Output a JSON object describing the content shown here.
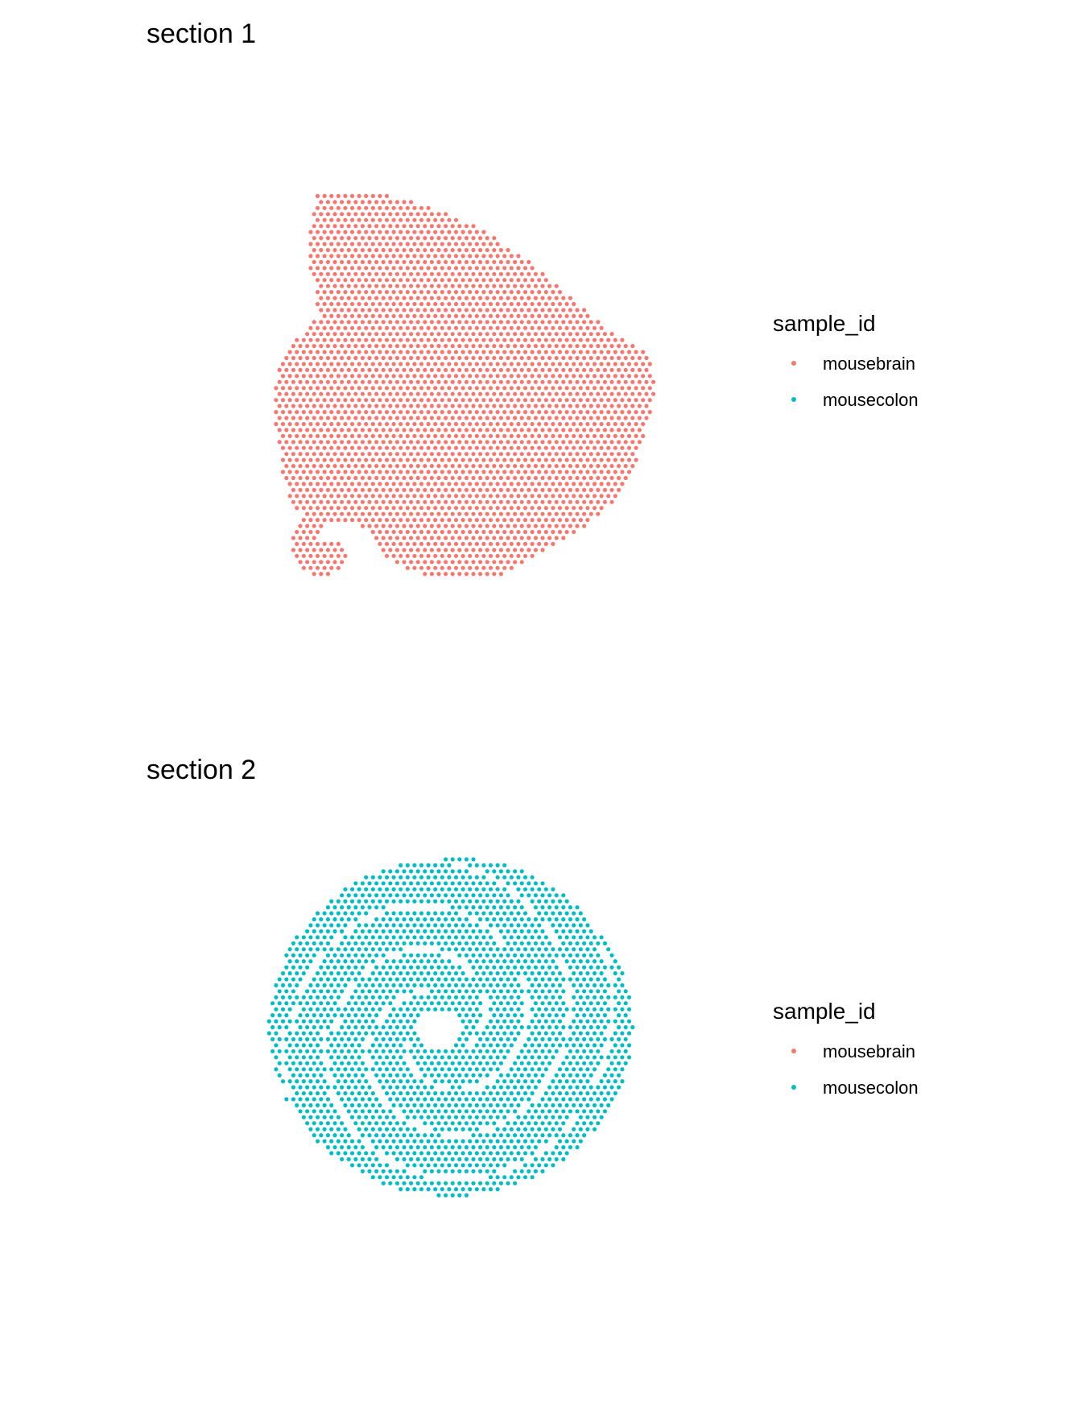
{
  "legend": {
    "title": "sample_id",
    "items": [
      {
        "label": "mousebrain",
        "color": "#F8766D"
      },
      {
        "label": "mousecolon",
        "color": "#00BFC4"
      }
    ]
  },
  "chart_data": [
    {
      "type": "scatter",
      "title": "section 1",
      "xlabel": "",
      "ylabel": "",
      "grid": false,
      "legend_placement": "right",
      "legend_title": "sample_id",
      "legend_entries": [
        "mousebrain",
        "mousecolon"
      ],
      "series": [
        {
          "name": "mousebrain",
          "color": "#F8766D",
          "shape": "tissue-section-1"
        },
        {
          "name": "mousecolon",
          "color": "#00BFC4",
          "points": []
        }
      ]
    },
    {
      "type": "scatter",
      "title": "section 2",
      "xlabel": "",
      "ylabel": "",
      "grid": false,
      "legend_placement": "right",
      "legend_title": "sample_id",
      "legend_entries": [
        "mousebrain",
        "mousecolon"
      ],
      "series": [
        {
          "name": "mousebrain",
          "color": "#F8766D",
          "points": []
        },
        {
          "name": "mousecolon",
          "color": "#00BFC4",
          "shape": "tissue-section-2"
        }
      ]
    }
  ]
}
